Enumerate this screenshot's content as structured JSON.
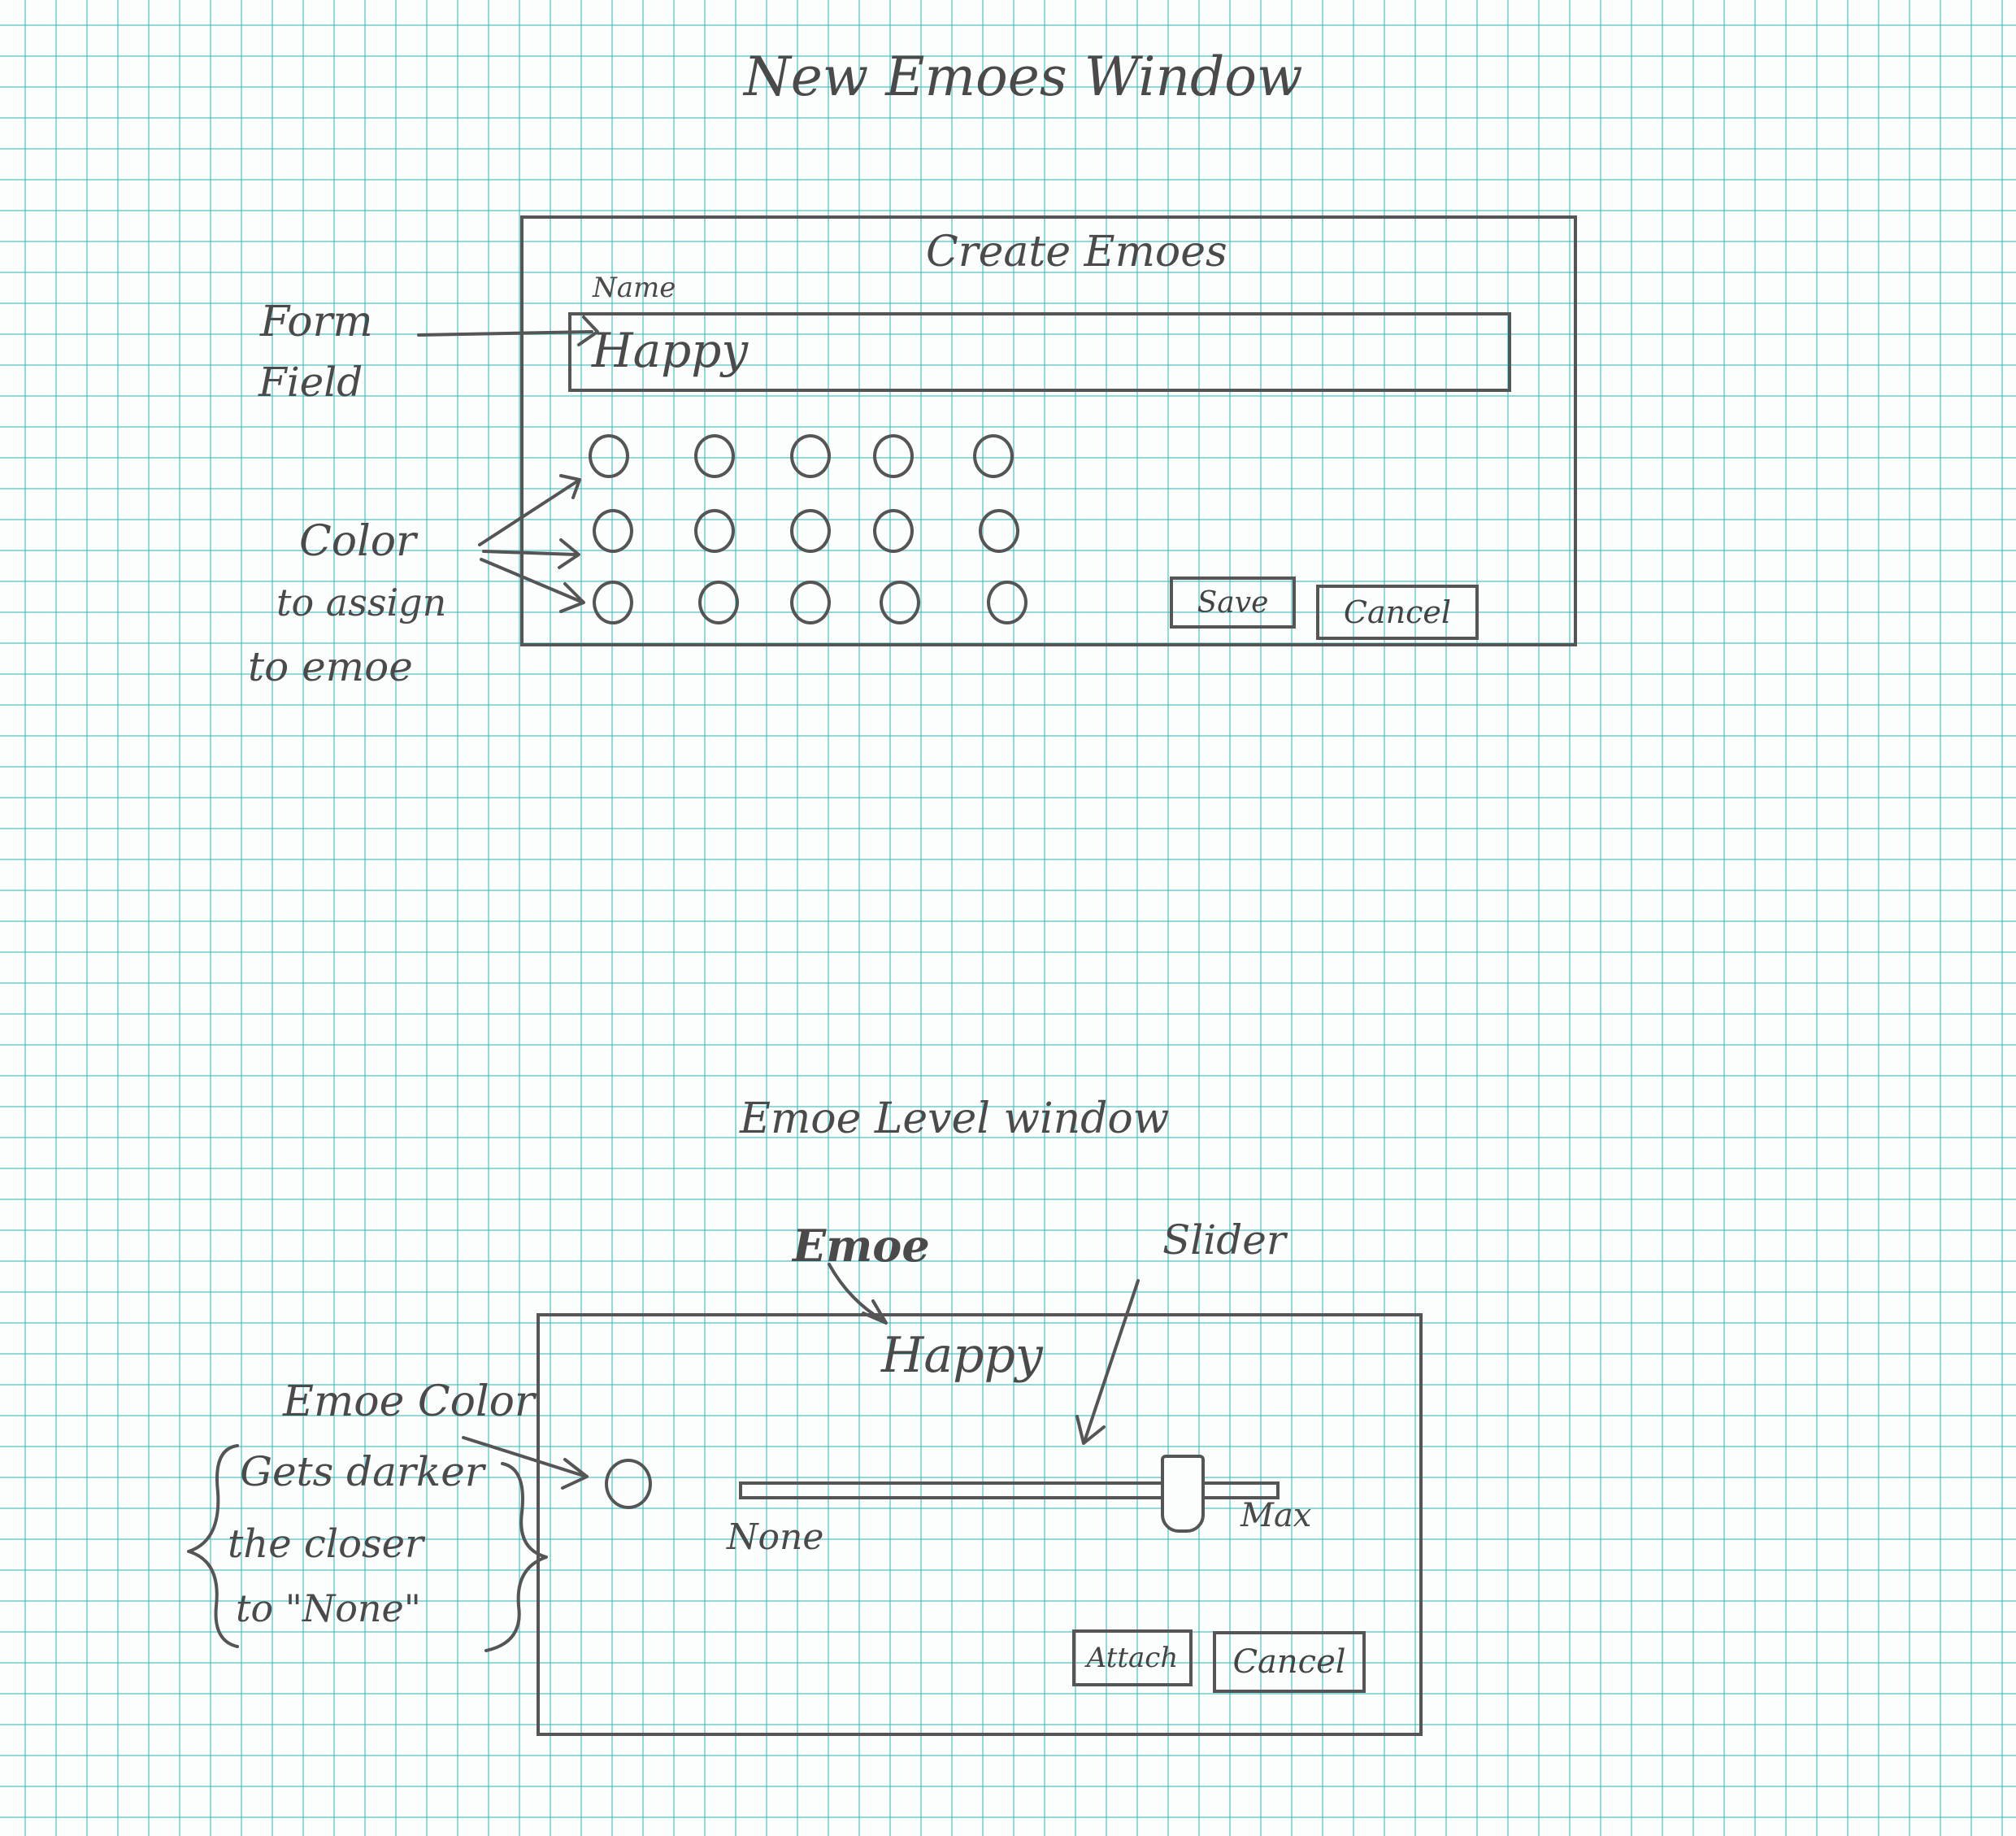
{
  "page": {
    "title": "New Emoes Window"
  },
  "create_window": {
    "title": "Create Emoes",
    "name_label": "Name",
    "name_value": "Happy",
    "save_label": "Save",
    "cancel_label": "Cancel",
    "swatch_rows": 3,
    "swatch_cols": 5
  },
  "annotations_top": {
    "form_field": [
      "Form",
      "Field"
    ],
    "color": [
      "Color",
      "to assign",
      "to emoe"
    ]
  },
  "level_window": {
    "heading": "Emoe Level window",
    "emoe_name": "Happy",
    "slider_min_label": "None",
    "slider_max_label": "Max",
    "slider_value": 0.85,
    "attach_label": "Attach",
    "cancel_label": "Cancel"
  },
  "annotations_bottom": {
    "emoe": "Emoe",
    "slider": "Slider",
    "emoe_color": "Emoe Color",
    "note": [
      "Gets darker",
      "the closer",
      "to \"None\""
    ]
  },
  "colors": {
    "pencil": "#555555",
    "grid": "#3cb9be"
  }
}
